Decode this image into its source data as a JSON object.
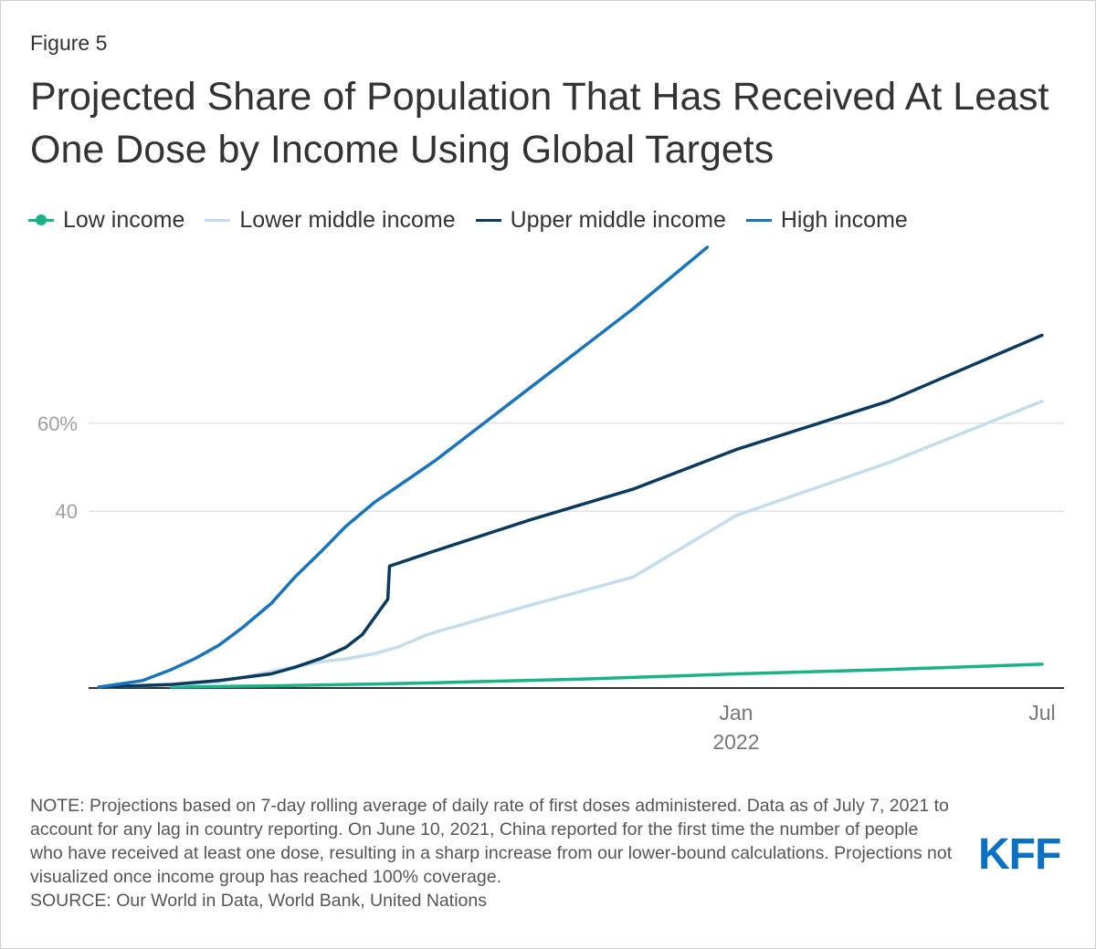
{
  "figure_label": "Figure 5",
  "title": "Projected Share of Population That Has Received At Least One Dose by Income Using Global Targets",
  "legend": [
    {
      "label": "Low income",
      "color": "#1ab386",
      "marker": "dot"
    },
    {
      "label": "Lower middle income",
      "color": "#c3dcee",
      "marker": "line"
    },
    {
      "label": "Upper middle income",
      "color": "#0a3a5f",
      "marker": "line"
    },
    {
      "label": "High income",
      "color": "#1a74bd",
      "marker": "line"
    }
  ],
  "note": "NOTE: Projections based on 7-day rolling average of daily rate of first doses administered. Data as of July 7, 2021 to account for any lag in country reporting. On June 10, 2021, China reported for the first time the number of people who have received at least one dose, resulting in a sharp increase from our lower-bound calculations. Projections not visualized once income group has reached 100% coverage.",
  "source": "SOURCE: Our World in Data, World Bank, United Nations",
  "logo_text": "KFF",
  "chart_data": {
    "type": "line",
    "title": "Projected Share of Population That Has Received At Least One Dose by Income Using Global Targets",
    "xlabel": "",
    "ylabel": "",
    "x_range": [
      "2020-12-14",
      "2022-07-14"
    ],
    "ylim": [
      0,
      100
    ],
    "y_ticks": [
      {
        "value": 40,
        "label": "40"
      },
      {
        "value": 60,
        "label": "60%"
      }
    ],
    "x_ticks": [
      {
        "date": "2022-01-01",
        "label": "Jan",
        "sublabel": "2022"
      },
      {
        "date": "2022-07-01",
        "label": "Jul",
        "sublabel": ""
      }
    ],
    "grid": true,
    "legend_position": "top",
    "series": [
      {
        "name": "Low income",
        "color": "#1ab386",
        "points": [
          [
            "2021-02-01",
            0
          ],
          [
            "2021-04-01",
            0.3
          ],
          [
            "2021-06-01",
            0.7
          ],
          [
            "2021-07-07",
            1.0
          ],
          [
            "2021-10-01",
            1.8
          ],
          [
            "2022-01-01",
            3.0
          ],
          [
            "2022-04-01",
            4.0
          ],
          [
            "2022-07-01",
            5.2
          ]
        ]
      },
      {
        "name": "Lower middle income",
        "color": "#c3dcee",
        "points": [
          [
            "2020-12-20",
            0
          ],
          [
            "2021-02-01",
            0.5
          ],
          [
            "2021-03-01",
            1.2
          ],
          [
            "2021-04-01",
            3.5
          ],
          [
            "2021-04-15",
            4.6
          ],
          [
            "2021-05-01",
            5.8
          ],
          [
            "2021-05-15",
            6.4
          ],
          [
            "2021-06-01",
            7.6
          ],
          [
            "2021-06-15",
            9.1
          ],
          [
            "2021-07-01",
            11.7
          ],
          [
            "2021-07-07",
            12.5
          ],
          [
            "2021-09-01",
            18.6
          ],
          [
            "2021-11-01",
            25.0
          ],
          [
            "2022-01-01",
            39.0
          ],
          [
            "2022-04-01",
            51.0
          ],
          [
            "2022-07-01",
            65.0
          ]
        ]
      },
      {
        "name": "Upper middle income",
        "color": "#0a3a5f",
        "points": [
          [
            "2020-12-20",
            0
          ],
          [
            "2021-02-01",
            0.6
          ],
          [
            "2021-03-01",
            1.5
          ],
          [
            "2021-04-01",
            3.0
          ],
          [
            "2021-04-15",
            4.5
          ],
          [
            "2021-05-01",
            6.6
          ],
          [
            "2021-05-15",
            9.0
          ],
          [
            "2021-05-25",
            12.0
          ],
          [
            "2021-06-09",
            20.0
          ],
          [
            "2021-06-10",
            27.5
          ],
          [
            "2021-06-20",
            28.8
          ],
          [
            "2021-07-07",
            31.0
          ],
          [
            "2021-09-01",
            38.0
          ],
          [
            "2021-11-01",
            45.0
          ],
          [
            "2022-01-01",
            54.0
          ],
          [
            "2022-04-01",
            65.0
          ],
          [
            "2022-07-01",
            80.0
          ]
        ]
      },
      {
        "name": "High income",
        "color": "#1a74bd",
        "points": [
          [
            "2020-12-20",
            0
          ],
          [
            "2021-01-15",
            1.5
          ],
          [
            "2021-02-01",
            4.0
          ],
          [
            "2021-02-15",
            6.5
          ],
          [
            "2021-03-01",
            9.5
          ],
          [
            "2021-03-15",
            13.5
          ],
          [
            "2021-04-01",
            19.0
          ],
          [
            "2021-04-15",
            25.0
          ],
          [
            "2021-05-01",
            31.0
          ],
          [
            "2021-05-15",
            36.5
          ],
          [
            "2021-06-01",
            42.0
          ],
          [
            "2021-06-20",
            47.0
          ],
          [
            "2021-07-07",
            51.5
          ],
          [
            "2021-09-01",
            68.0
          ],
          [
            "2021-11-01",
            86.0
          ],
          [
            "2021-12-15",
            100.0
          ]
        ]
      }
    ]
  }
}
